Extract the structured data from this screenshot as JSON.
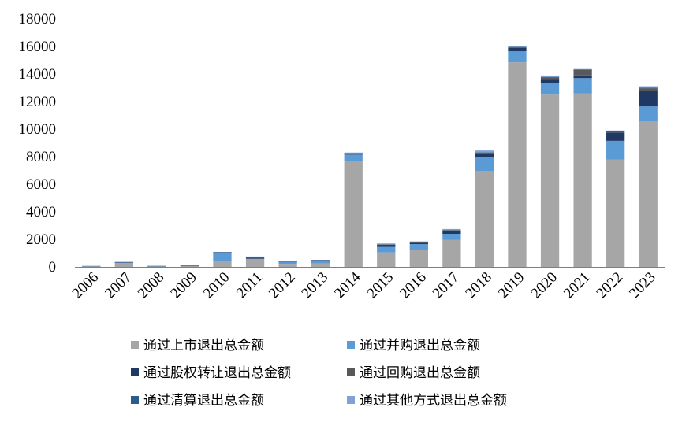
{
  "chart_data": {
    "type": "bar",
    "stacked": true,
    "categories": [
      "2006",
      "2007",
      "2008",
      "2009",
      "2010",
      "2011",
      "2012",
      "2013",
      "2014",
      "2015",
      "2016",
      "2017",
      "2018",
      "2019",
      "2020",
      "2021",
      "2022",
      "2023"
    ],
    "ylim": [
      0,
      18000
    ],
    "yticks": [
      0,
      2000,
      4000,
      6000,
      8000,
      10000,
      12000,
      14000,
      16000,
      18000
    ],
    "legend_position": "bottom",
    "grid": false,
    "series": [
      {
        "name": "通过上市退出总金额",
        "color": "#a6a6a6",
        "values": [
          20,
          300,
          20,
          60,
          400,
          550,
          220,
          250,
          7700,
          1050,
          1250,
          1950,
          6950,
          14850,
          12500,
          12600,
          7800,
          10550
        ]
      },
      {
        "name": "通过并购退出总金额",
        "color": "#5b9bd5",
        "values": [
          30,
          20,
          40,
          20,
          650,
          40,
          140,
          220,
          450,
          400,
          400,
          450,
          1000,
          800,
          850,
          1100,
          1350,
          1100
        ]
      },
      {
        "name": "通过股权转让退出总金额",
        "color": "#1f3864",
        "values": [
          10,
          10,
          5,
          20,
          10,
          80,
          20,
          20,
          80,
          150,
          100,
          200,
          300,
          250,
          300,
          200,
          600,
          1150
        ]
      },
      {
        "name": "通过回购退出总金额",
        "color": "#595959",
        "values": [
          5,
          20,
          5,
          10,
          10,
          60,
          10,
          10,
          20,
          20,
          30,
          50,
          50,
          50,
          100,
          400,
          50,
          150
        ]
      },
      {
        "name": "通过清算退出总金额",
        "color": "#2e5c8a",
        "values": [
          0,
          5,
          0,
          5,
          5,
          10,
          5,
          5,
          20,
          20,
          20,
          30,
          30,
          30,
          40,
          40,
          60,
          60
        ]
      },
      {
        "name": "通过其他方式退出总金额",
        "color": "#7da2d8",
        "values": [
          5,
          5,
          5,
          5,
          5,
          10,
          5,
          5,
          30,
          60,
          50,
          70,
          120,
          70,
          100,
          20,
          40,
          100
        ]
      }
    ]
  }
}
